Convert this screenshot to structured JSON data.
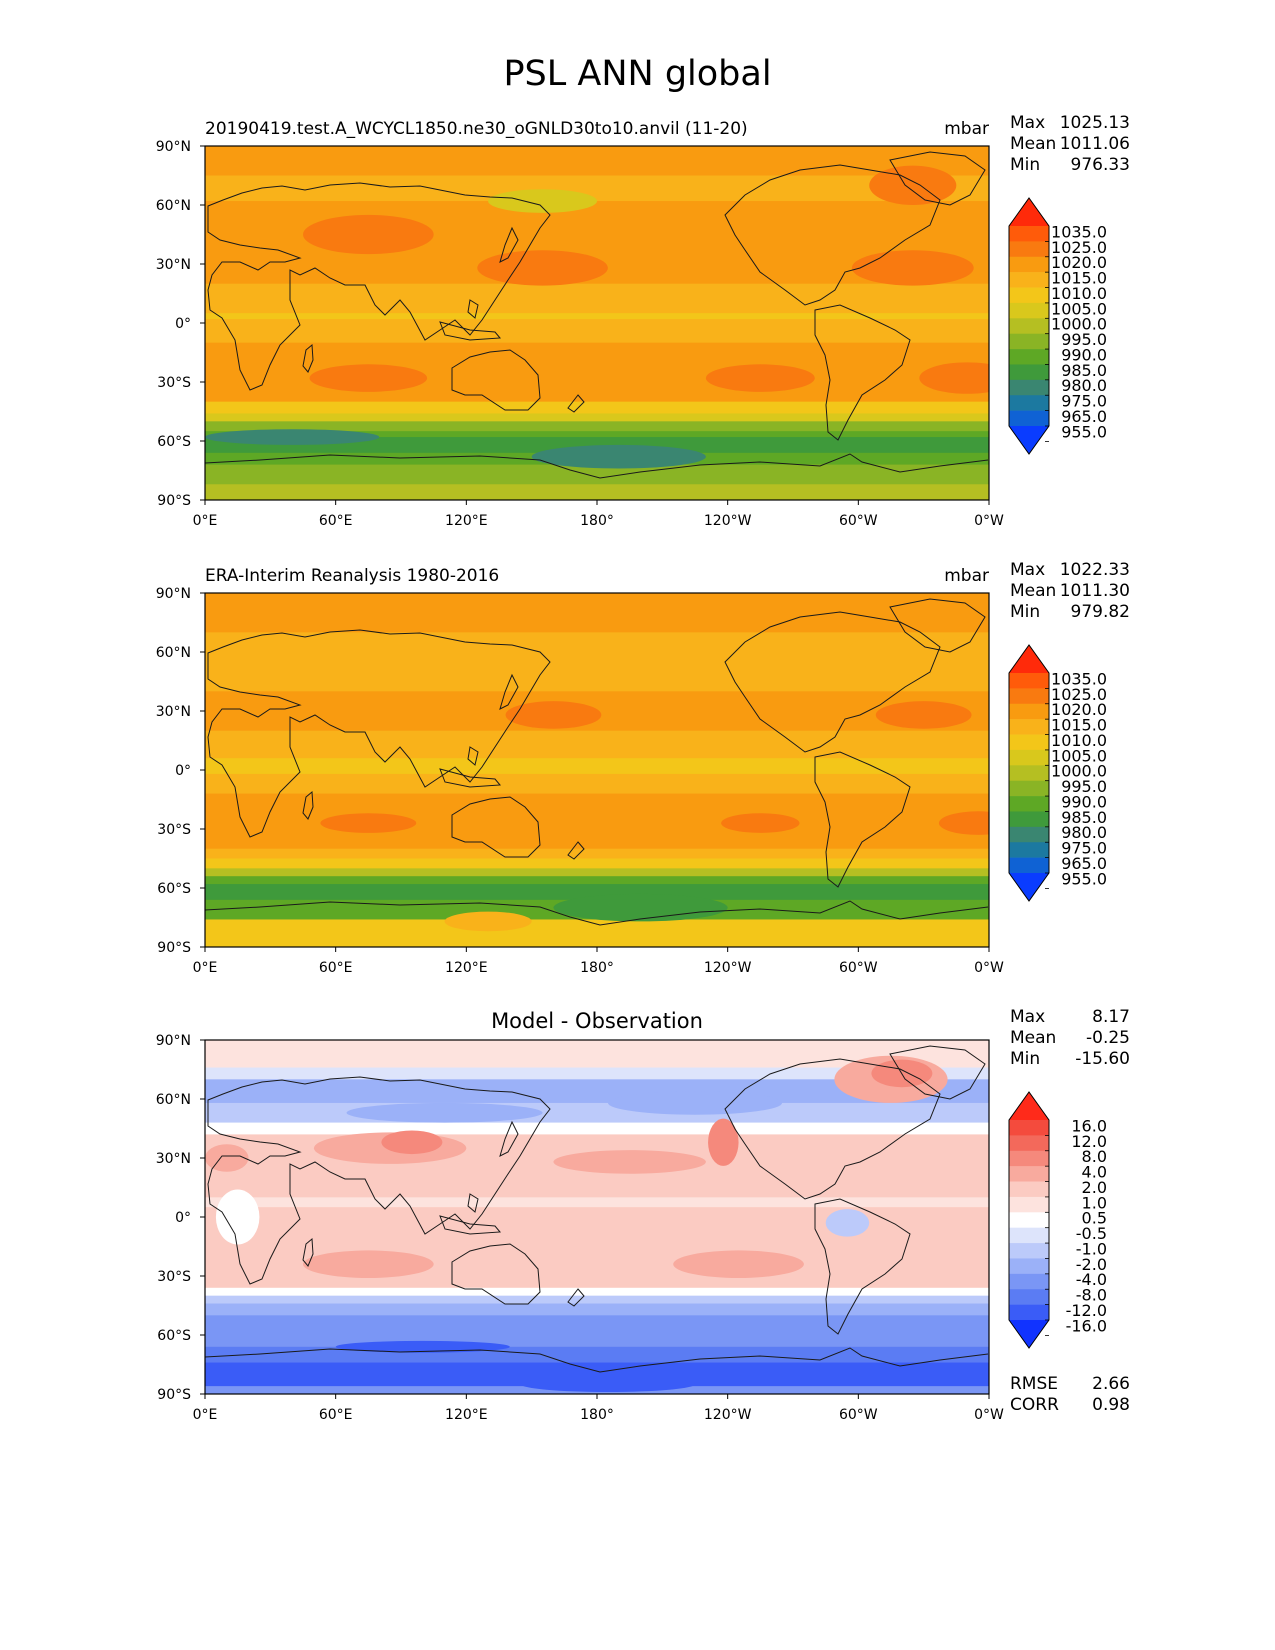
{
  "title": "PSL ANN global",
  "x_ticks": [
    "0°E",
    "60°E",
    "120°E",
    "180°",
    "120°W",
    "60°W",
    "0°W"
  ],
  "y_ticks": [
    "90°N",
    "60°N",
    "30°N",
    "0°",
    "30°S",
    "60°S",
    "90°S"
  ],
  "panels": [
    {
      "id": "test",
      "left_title": "20190419.test.A_WCYCL1850.ne30_oGNLD30to10.anvil (11-20)",
      "center_title": "",
      "units": "mbar",
      "stats": [
        {
          "label": "Max",
          "value": "1025.13"
        },
        {
          "label": "Mean",
          "value": "1011.06"
        },
        {
          "label": "Min",
          "value": "976.33"
        }
      ],
      "colorbar": {
        "levels": [
          "1035.0",
          "1025.0",
          "1020.0",
          "1015.0",
          "1010.0",
          "1005.0",
          "1000.0",
          "995.0",
          "990.0",
          "985.0",
          "980.0",
          "975.0",
          "965.0",
          "955.0"
        ],
        "colors": [
          "#ff2a0a",
          "#ff5b0a",
          "#f97a10",
          "#f99b10",
          "#f9b21a",
          "#f3c619",
          "#d9c81c",
          "#b5bf22",
          "#8ab425",
          "#5ea825",
          "#3f9a3b",
          "#3a8671",
          "#1c79a0",
          "#0f62d4",
          "#0a3cff"
        ]
      },
      "bands": [
        {
          "lat": 90,
          "color": "#f99b10"
        },
        {
          "lat": 75,
          "color": "#f9b21a"
        },
        {
          "lat": 62,
          "color": "#f99b10"
        },
        {
          "lat": 20,
          "color": "#f9b21a"
        },
        {
          "lat": 5,
          "color": "#f3c619"
        },
        {
          "lat": 2,
          "color": "#f9b21a"
        },
        {
          "lat": -10,
          "color": "#f99b10"
        },
        {
          "lat": -40,
          "color": "#f3c619"
        },
        {
          "lat": -46,
          "color": "#d9c81c"
        },
        {
          "lat": -50,
          "color": "#8ab425"
        },
        {
          "lat": -55,
          "color": "#5ea825"
        },
        {
          "lat": -58,
          "color": "#3f9a3b"
        },
        {
          "lat": -66,
          "color": "#5ea825"
        },
        {
          "lat": -72,
          "color": "#8ab425"
        },
        {
          "lat": -82,
          "color": "#b5bf22"
        }
      ],
      "blobs": [
        {
          "lon": 155,
          "lat": 28,
          "rlon": 30,
          "rlat": 9,
          "color": "#f97a10"
        },
        {
          "lon": 325,
          "lat": 28,
          "rlon": 28,
          "rlat": 9,
          "color": "#f97a10"
        },
        {
          "lon": 75,
          "lat": -28,
          "rlon": 27,
          "rlat": 7,
          "color": "#f97a10"
        },
        {
          "lon": 255,
          "lat": -28,
          "rlon": 25,
          "rlat": 7,
          "color": "#f97a10"
        },
        {
          "lon": 350,
          "lat": -28,
          "rlon": 22,
          "rlat": 8,
          "color": "#f97a10"
        },
        {
          "lon": 75,
          "lat": 45,
          "rlon": 30,
          "rlat": 10,
          "color": "#f97a10"
        },
        {
          "lon": 325,
          "lat": 70,
          "rlon": 20,
          "rlat": 10,
          "color": "#f97a10"
        },
        {
          "lon": 190,
          "lat": -68,
          "rlon": 40,
          "rlat": 6,
          "color": "#3a8671"
        },
        {
          "lon": 40,
          "lat": -58,
          "rlon": 40,
          "rlat": 4,
          "color": "#3a8671"
        },
        {
          "lon": 155,
          "lat": 62,
          "rlon": 25,
          "rlat": 6,
          "color": "#d9c81c"
        }
      ]
    },
    {
      "id": "ref",
      "left_title": "ERA-Interim Reanalysis 1980-2016",
      "center_title": "",
      "units": "mbar",
      "stats": [
        {
          "label": "Max",
          "value": "1022.33"
        },
        {
          "label": "Mean",
          "value": "1011.30"
        },
        {
          "label": "Min",
          "value": "979.82"
        }
      ],
      "colorbar": {
        "levels": [
          "1035.0",
          "1025.0",
          "1020.0",
          "1015.0",
          "1010.0",
          "1005.0",
          "1000.0",
          "995.0",
          "990.0",
          "985.0",
          "980.0",
          "975.0",
          "965.0",
          "955.0"
        ],
        "colors": [
          "#ff2a0a",
          "#ff5b0a",
          "#f97a10",
          "#f99b10",
          "#f9b21a",
          "#f3c619",
          "#d9c81c",
          "#b5bf22",
          "#8ab425",
          "#5ea825",
          "#3f9a3b",
          "#3a8671",
          "#1c79a0",
          "#0f62d4",
          "#0a3cff"
        ]
      },
      "bands": [
        {
          "lat": 90,
          "color": "#f99b10"
        },
        {
          "lat": 70,
          "color": "#f9b21a"
        },
        {
          "lat": 40,
          "color": "#f99b10"
        },
        {
          "lat": 20,
          "color": "#f9b21a"
        },
        {
          "lat": 6,
          "color": "#f3c619"
        },
        {
          "lat": -2,
          "color": "#f9b21a"
        },
        {
          "lat": -12,
          "color": "#f99b10"
        },
        {
          "lat": -40,
          "color": "#f9b21a"
        },
        {
          "lat": -45,
          "color": "#f3c619"
        },
        {
          "lat": -50,
          "color": "#b5bf22"
        },
        {
          "lat": -54,
          "color": "#5ea825"
        },
        {
          "lat": -58,
          "color": "#3f9a3b"
        },
        {
          "lat": -66,
          "color": "#5ea825"
        },
        {
          "lat": -76,
          "color": "#f3c619"
        }
      ],
      "blobs": [
        {
          "lon": 160,
          "lat": 28,
          "rlon": 22,
          "rlat": 7,
          "color": "#f97a10"
        },
        {
          "lon": 330,
          "lat": 28,
          "rlon": 22,
          "rlat": 7,
          "color": "#f97a10"
        },
        {
          "lon": 75,
          "lat": -27,
          "rlon": 22,
          "rlat": 5,
          "color": "#f97a10"
        },
        {
          "lon": 255,
          "lat": -27,
          "rlon": 18,
          "rlat": 5,
          "color": "#f97a10"
        },
        {
          "lon": 355,
          "lat": -27,
          "rlon": 18,
          "rlat": 6,
          "color": "#f97a10"
        },
        {
          "lon": 200,
          "lat": -70,
          "rlon": 40,
          "rlat": 7,
          "color": "#3f9a3b"
        },
        {
          "lon": 130,
          "lat": -77,
          "rlon": 20,
          "rlat": 5,
          "color": "#f9b21a"
        },
        {
          "lon": 320,
          "lat": 60,
          "rlon": 25,
          "rlat": 10,
          "color": "#f9b21a"
        }
      ]
    },
    {
      "id": "diff",
      "left_title": "",
      "center_title": "Model - Observation",
      "units": "",
      "stats": [
        {
          "label": "Max",
          "value": "8.17"
        },
        {
          "label": "Mean",
          "value": "-0.25"
        },
        {
          "label": "Min",
          "value": "-15.60"
        }
      ],
      "extra_stats": [
        {
          "label": "RMSE",
          "value": "2.66"
        },
        {
          "label": "CORR",
          "value": "0.98"
        }
      ],
      "colorbar": {
        "levels": [
          "16.0",
          "12.0",
          "8.0",
          "4.0",
          "2.0",
          "1.0",
          "0.5",
          "-0.5",
          "-1.0",
          "-2.0",
          "-4.0",
          "-8.0",
          "-12.0",
          "-16.0"
        ],
        "colors": [
          "#ff2a1a",
          "#f44b3d",
          "#f3695b",
          "#f5897c",
          "#f8aa9e",
          "#fbcbc2",
          "#fde3de",
          "#ffffff",
          "#dde4fb",
          "#bccafa",
          "#9bb1f8",
          "#7a96f5",
          "#5b7cf3",
          "#3a5cf7",
          "#1133ff"
        ]
      },
      "bands": [
        {
          "lat": 90,
          "color": "#fde3de"
        },
        {
          "lat": 76,
          "color": "#dde4fb"
        },
        {
          "lat": 70,
          "color": "#9bb1f8"
        },
        {
          "lat": 58,
          "color": "#bccafa"
        },
        {
          "lat": 48,
          "color": "#ffffff"
        },
        {
          "lat": 42,
          "color": "#fbcbc2"
        },
        {
          "lat": 26,
          "color": "#fbcbc2"
        },
        {
          "lat": 10,
          "color": "#fde3de"
        },
        {
          "lat": 5,
          "color": "#fbcbc2"
        },
        {
          "lat": -36,
          "color": "#ffffff"
        },
        {
          "lat": -40,
          "color": "#bccafa"
        },
        {
          "lat": -44,
          "color": "#9bb1f8"
        },
        {
          "lat": -50,
          "color": "#7a96f5"
        },
        {
          "lat": -66,
          "color": "#5b7cf3"
        },
        {
          "lat": -74,
          "color": "#3a5cf7"
        },
        {
          "lat": -86,
          "color": "#7a96f5"
        }
      ],
      "blobs": [
        {
          "lon": 75,
          "lat": -24,
          "rlon": 30,
          "rlat": 7,
          "color": "#f8aa9e"
        },
        {
          "lon": 245,
          "lat": -24,
          "rlon": 30,
          "rlat": 7,
          "color": "#f8aa9e"
        },
        {
          "lon": 195,
          "lat": 28,
          "rlon": 35,
          "rlat": 6,
          "color": "#f8aa9e"
        },
        {
          "lon": 85,
          "lat": 35,
          "rlon": 35,
          "rlat": 8,
          "color": "#f8aa9e"
        },
        {
          "lon": 95,
          "lat": 38,
          "rlon": 14,
          "rlat": 6,
          "color": "#f5897c"
        },
        {
          "lon": 10,
          "lat": 30,
          "rlon": 10,
          "rlat": 7,
          "color": "#f8aa9e"
        },
        {
          "lon": 110,
          "lat": 53,
          "rlon": 45,
          "rlat": 5,
          "color": "#9bb1f8"
        },
        {
          "lon": 225,
          "lat": 58,
          "rlon": 40,
          "rlat": 6,
          "color": "#9bb1f8"
        },
        {
          "lon": 315,
          "lat": 70,
          "rlon": 26,
          "rlat": 12,
          "color": "#f8aa9e"
        },
        {
          "lon": 320,
          "lat": 73,
          "rlon": 14,
          "rlat": 7,
          "color": "#f5897c"
        },
        {
          "lon": 238,
          "lat": 38,
          "rlon": 7,
          "rlat": 12,
          "color": "#f5897c"
        },
        {
          "lon": 295,
          "lat": -3,
          "rlon": 10,
          "rlat": 7,
          "color": "#bccafa"
        },
        {
          "lon": 15,
          "lat": 0,
          "rlon": 10,
          "rlat": 14,
          "color": "#ffffff"
        },
        {
          "lon": 100,
          "lat": -66,
          "rlon": 40,
          "rlat": 3,
          "color": "#3a5cf7"
        },
        {
          "lon": 40,
          "lat": -80,
          "rlon": 40,
          "rlat": 5,
          "color": "#3a5cf7"
        },
        {
          "lon": 185,
          "lat": -85,
          "rlon": 40,
          "rlat": 4,
          "color": "#3a5cf7"
        }
      ]
    }
  ]
}
